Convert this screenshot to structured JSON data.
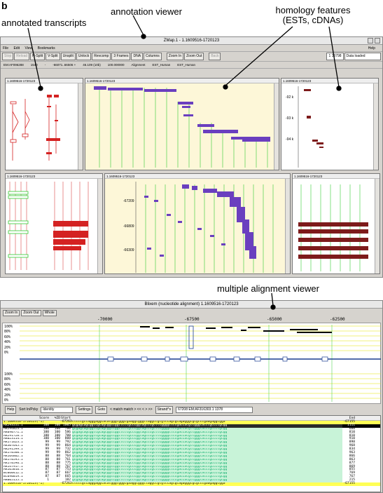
{
  "figure_label": "b",
  "callouts": {
    "annotation_viewer": "annotation viewer",
    "annotated_transcripts": "annotated transcripts",
    "homology_line1": "homology features",
    "homology_line2": "(ESTs, cDNAs)",
    "multiple_alignment_viewer": "multiple alignment viewer"
  },
  "zmap": {
    "title": "ZMap.1 - 1.1609516-1720123",
    "menu": [
      "File",
      "Edit",
      "View",
      "Bookmarks"
    ],
    "help": "Help",
    "toolbar": [
      "Stop",
      "Reload",
      "H-Split",
      "V-Split",
      "Unsplit",
      "Unlock",
      "Revcomp",
      "3 Frames",
      "DNA",
      "Columns",
      "Zoom In",
      "Zoom Out",
      "Back"
    ],
    "coord_box": "1 13798",
    "status": "Data loaded",
    "info": [
      "EM:AF096288",
      "1540",
      "-",
      "-66071..66506 +",
      "46.109 (10b)",
      "100.000000",
      "Alignment",
      "EST_Human",
      "EST_Human"
    ],
    "pane_header": "1.1609516-1720123",
    "ruler_labels": [
      "-92 k",
      "-93 k",
      "-94 k"
    ],
    "lower_ruler": [
      "-67209",
      "-66809",
      "-66309"
    ]
  },
  "blixem": {
    "title": "Blixem   (nucleotide alignment)   1.1609516-1720123",
    "toolbar": [
      "Zoom In",
      "Zoom Out",
      "Whole"
    ],
    "ruler": [
      "-70000",
      "-67500",
      "-65000",
      "-62500"
    ],
    "pct_labels": [
      "100%",
      "80%",
      "60%",
      "40%",
      "20%",
      "0%"
    ],
    "controls": {
      "help": "Help",
      "sort": "Sort In/Pcky",
      "sort_value": "Identity",
      "settings": "Settings",
      "goto": "Goto",
      "nav": "< match   match >   <<   <   >   >>",
      "strand": "Strand^v",
      "position": "67208  EM:AF316303.1 1378"
    },
    "columns": [
      "",
      "Score",
      "%ID",
      "Start",
      "",
      "End"
    ],
    "ref_top": {
      "name": "1.1609516-1720123(-1)",
      "start": "-67263",
      "seq": "ctcccgccagggaggcacatgggtgggcgaaggcgggctaggccgtgtccagcgcagagggcgcgcccgaagaggcgga",
      "end": "-67155"
    },
    "ref_bottom": {
      "name": "1.1609516-1720123(-1)",
      "start": "-67263",
      "seq": "ctcccgccagggaggcacatgggtgggcgaaggcgggctaggccgtgtccagcgcagagggcgcgcccgaagaggcgga",
      "end": "-67155"
    },
    "rows": [
      {
        "name": "AK293551.1",
        "score": "100",
        "id": "100",
        "start": "1005",
        "end": "1111"
      },
      {
        "name": "AK294823.1",
        "score": "100",
        "id": "100",
        "start": "780",
        "end": "688"
      },
      {
        "name": "AK090771.1",
        "score": "100",
        "id": "100",
        "start": "586",
        "end": "810"
      },
      {
        "name": "AK291728.1",
        "score": "100",
        "id": "100",
        "start": "708",
        "end": "810"
      },
      {
        "name": "AK023114.1",
        "score": "100",
        "id": "100",
        "start": "808",
        "end": "910"
      },
      {
        "name": "AK171623.1",
        "score": "99",
        "id": "99",
        "start": "792",
        "end": "898"
      },
      {
        "name": "AK307645.1",
        "score": "99",
        "id": "99",
        "start": "864",
        "end": "968"
      },
      {
        "name": "AK291599.1",
        "score": "99",
        "id": "99",
        "start": "732",
        "end": "834"
      },
      {
        "name": "AK170560.1",
        "score": "99",
        "id": "99",
        "start": "862",
        "end": "963"
      },
      {
        "name": "AK164862.1",
        "score": "88",
        "id": "88",
        "start": "764",
        "end": "866"
      },
      {
        "name": "AK170595.1",
        "score": "88",
        "id": "88",
        "start": "761",
        "end": "863"
      },
      {
        "name": "AK170596.1",
        "score": "88",
        "id": "88",
        "start": "775",
        "end": "877"
      },
      {
        "name": "AK147917.1",
        "score": "88",
        "id": "88",
        "start": "767",
        "end": "869"
      },
      {
        "name": "AK165016.1",
        "score": "87",
        "id": "87",
        "start": "753",
        "end": "855"
      },
      {
        "name": "BC060412.1",
        "score": "87",
        "id": "87",
        "start": "667",
        "end": "769"
      },
      {
        "name": "BC090019.1",
        "score": "87",
        "id": "87",
        "start": "665",
        "end": "767"
      },
      {
        "name": "AK005155.1",
        "score": "1",
        "id": "",
        "start": "182",
        "end": "215"
      }
    ],
    "seq_sample": "gcgagcagcggtcgcagcggccggctctcgcccggtagcccgcttcggggctccgaccacgttgggtacctgccctgcgg"
  },
  "colors": {
    "transcript": "#d42222",
    "homology": "#6a3fbf",
    "est": "#7d1b1b",
    "accent_green": "#33cc33",
    "ref_yellow": "#ffff55"
  }
}
